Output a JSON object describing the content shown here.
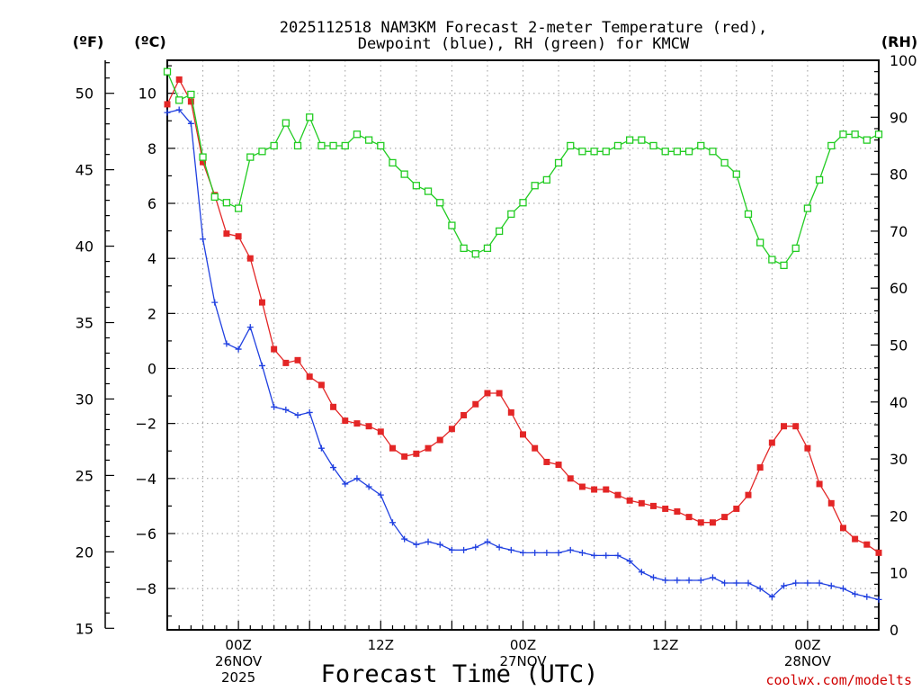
{
  "chart_data": {
    "type": "line",
    "title_lines": [
      "2025112518 NAM3KM Forecast 2-meter Temperature (red),",
      "Dewpoint (blue), RH (green) for KMCW"
    ],
    "units": {
      "fahrenheit": "(ºF)",
      "celsius": "(ºC)",
      "rh": "(RH)"
    },
    "x_range_hours": [
      0,
      60
    ],
    "x_ticks": [
      {
        "hour": 6,
        "lines": [
          "00Z",
          "26NOV",
          "2025"
        ]
      },
      {
        "hour": 18,
        "lines": [
          "12Z"
        ]
      },
      {
        "hour": 30,
        "lines": [
          "00Z",
          "27NOV"
        ]
      },
      {
        "hour": 42,
        "lines": [
          "12Z"
        ]
      },
      {
        "hour": 54,
        "lines": [
          "00Z",
          "28NOV"
        ]
      }
    ],
    "xlabel": "Forecast Time (UTC)",
    "celsius_axis": {
      "range": [
        -9.5,
        11.2
      ],
      "ticks": [
        -8,
        -6,
        -4,
        -2,
        0,
        2,
        4,
        6,
        8,
        10
      ],
      "tick_labels": [
        "−8",
        "−6",
        "−4",
        "−2",
        "0",
        "2",
        "4",
        "6",
        "8",
        "10"
      ]
    },
    "fahrenheit_axis": {
      "ticks": [
        15,
        20,
        25,
        30,
        35,
        40,
        45,
        50
      ],
      "tick_labels": [
        "15",
        "20",
        "25",
        "30",
        "35",
        "40",
        "45",
        "50"
      ]
    },
    "rh_axis": {
      "range": [
        0,
        100
      ],
      "ticks": [
        0,
        10,
        20,
        30,
        40,
        50,
        60,
        70,
        80,
        90,
        100
      ],
      "tick_labels": [
        "0",
        "10",
        "20",
        "30",
        "40",
        "50",
        "60",
        "70",
        "80",
        "90",
        "100"
      ]
    },
    "hours": [
      0,
      1,
      2,
      3,
      4,
      5,
      6,
      7,
      8,
      9,
      10,
      11,
      12,
      13,
      14,
      15,
      16,
      17,
      18,
      19,
      20,
      21,
      22,
      23,
      24,
      25,
      26,
      27,
      28,
      29,
      30,
      31,
      32,
      33,
      34,
      35,
      36,
      37,
      38,
      39,
      40,
      41,
      42,
      43,
      44,
      45,
      46,
      47,
      48,
      49,
      50,
      51,
      52,
      53,
      54,
      55,
      56,
      57,
      58,
      59,
      60
    ],
    "series": [
      {
        "name": "Temperature",
        "unit": "°C",
        "color": "#e32626",
        "marker": "filled-square",
        "values": [
          9.6,
          10.5,
          9.7,
          7.5,
          6.3,
          4.9,
          4.8,
          4.0,
          2.4,
          0.7,
          0.2,
          0.3,
          -0.3,
          -0.6,
          -1.4,
          -1.9,
          -2.0,
          -2.1,
          -2.3,
          -2.9,
          -3.2,
          -3.1,
          -2.9,
          -2.6,
          -2.2,
          -1.7,
          -1.3,
          -0.9,
          -0.9,
          -1.6,
          -2.4,
          -2.9,
          -3.4,
          -3.5,
          -4.0,
          -4.3,
          -4.4,
          -4.4,
          -4.6,
          -4.8,
          -4.9,
          -5.0,
          -5.1,
          -5.2,
          -5.4,
          -5.6,
          -5.6,
          -5.4,
          -5.1,
          -4.6,
          -3.6,
          -2.7,
          -2.1,
          -2.1,
          -2.9,
          -4.2,
          -4.9,
          -5.8,
          -6.2,
          -6.4,
          -6.7
        ]
      },
      {
        "name": "Dewpoint",
        "unit": "°C",
        "color": "#2040e0",
        "marker": "plus",
        "values": [
          9.3,
          9.4,
          8.9,
          4.7,
          2.4,
          0.9,
          0.7,
          1.5,
          0.1,
          -1.4,
          -1.5,
          -1.7,
          -1.6,
          -2.9,
          -3.6,
          -4.2,
          -4.0,
          -4.3,
          -4.6,
          -5.6,
          -6.2,
          -6.4,
          -6.3,
          -6.4,
          -6.6,
          -6.6,
          -6.5,
          -6.3,
          -6.5,
          -6.6,
          -6.7,
          -6.7,
          -6.7,
          -6.7,
          -6.6,
          -6.7,
          -6.8,
          -6.8,
          -6.8,
          -7.0,
          -7.4,
          -7.6,
          -7.7,
          -7.7,
          -7.7,
          -7.7,
          -7.6,
          -7.8,
          -7.8,
          -7.8,
          -8.0,
          -8.3,
          -7.9,
          -7.8,
          -7.8,
          -7.8,
          -7.9,
          -8.0,
          -8.2,
          -8.3,
          -8.4
        ]
      },
      {
        "name": "RH",
        "unit": "%",
        "color": "#22cc22",
        "marker": "open-square",
        "values": [
          98,
          93,
          94,
          83,
          76,
          75,
          74,
          83,
          84,
          85,
          89,
          85,
          90,
          85,
          85,
          85,
          87,
          86,
          85,
          82,
          80,
          78,
          77,
          75,
          71,
          67,
          66,
          67,
          70,
          73,
          75,
          78,
          79,
          82,
          85,
          84,
          84,
          84,
          85,
          86,
          86,
          85,
          84,
          84,
          84,
          85,
          84,
          82,
          80,
          73,
          68,
          65,
          64,
          67,
          74,
          79,
          85,
          87,
          87,
          86,
          87
        ]
      }
    ]
  },
  "credit": "coolwx.com/modelts"
}
